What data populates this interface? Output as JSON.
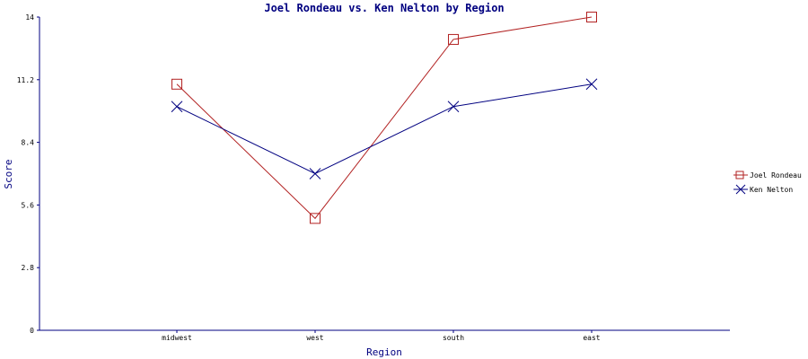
{
  "chart_data": {
    "type": "line",
    "title": "Joel Rondeau vs. Ken Nelton by Region",
    "xlabel": "Region",
    "ylabel": "Score",
    "categories": [
      "midwest",
      "west",
      "south",
      "east"
    ],
    "ylim": [
      0,
      14
    ],
    "yticks": [
      "0",
      "2.8",
      "5.6",
      "8.4",
      "11.2",
      "14"
    ],
    "grid": false,
    "legend_position": "right",
    "series": [
      {
        "name": "Joel Rondeau",
        "values": [
          11,
          5,
          13,
          14
        ],
        "color": "#b22222",
        "marker": "square"
      },
      {
        "name": "Ken Nelton",
        "values": [
          10,
          7,
          10,
          11
        ],
        "color": "#000080",
        "marker": "x"
      }
    ],
    "axis_color": "#000080"
  }
}
